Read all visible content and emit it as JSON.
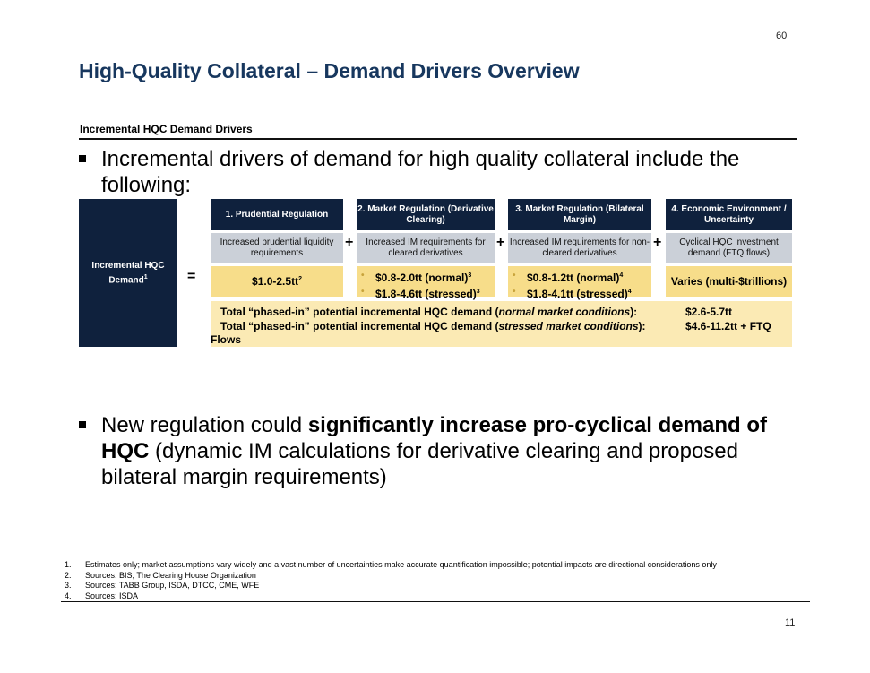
{
  "page_number_top": "60",
  "title": "High-Quality Collateral – Demand Drivers Overview",
  "section_label": "Incremental HQC Demand Drivers",
  "bullet1": "Incremental drivers of demand for high quality collateral include the following:",
  "left_box": {
    "label": "Incremental HQC Demand",
    "sup": "1"
  },
  "operators": {
    "equals": "=",
    "plus": "+"
  },
  "columns": [
    {
      "header": "1. Prudential Regulation",
      "description": "Increased prudential liquidity requirements",
      "value": "$1.0-2.5tt",
      "value_sup": "2"
    },
    {
      "header": "2. Market Regulation (Derivative Clearing)",
      "description": "Increased IM requirements for cleared derivatives",
      "values": [
        {
          "text": "$0.8-2.0tt (normal)",
          "sup": "3"
        },
        {
          "text": "$1.8-4.6tt (stressed)",
          "sup": "3"
        }
      ]
    },
    {
      "header": "3. Market Regulation (Bilateral Margin)",
      "description": "Increased IM requirements for non-cleared derivatives",
      "values": [
        {
          "text": "$0.8-1.2tt (normal)",
          "sup": "4"
        },
        {
          "text": "$1.8-4.1tt (stressed)",
          "sup": "4"
        }
      ]
    },
    {
      "header": "4. Economic Environment / Uncertainty",
      "description": "Cyclical HQC investment demand (FTQ flows)",
      "value": "Varies (multi-$trillions)"
    }
  ],
  "totals": {
    "line1_prefix": "Total “phased-in” potential incremental HQC demand (",
    "line1_italic": "normal market conditions",
    "line1_suffix": "):",
    "line1_value": "$2.6-5.7tt",
    "line2_prefix": "Total “phased-in” potential incremental HQC demand (",
    "line2_italic": "stressed market conditions",
    "line2_suffix": "):",
    "line2_value": "$4.6-11.2tt + FTQ",
    "line2_wrap": "Flows"
  },
  "bullet2": {
    "pre": "New regulation could ",
    "bold": "significantly increase pro-cyclical demand of HQC",
    "post": " (dynamic IM calculations for derivative clearing and proposed bilateral margin requirements)"
  },
  "footnotes": [
    {
      "n": "1.",
      "text": "Estimates only; market assumptions vary widely and a vast number of uncertainties make accurate quantification impossible; potential impacts are directional considerations only"
    },
    {
      "n": "2.",
      "text": "Sources: BIS, The Clearing House Organization"
    },
    {
      "n": "3.",
      "text": "Sources: TABB Group, ISDA, DTCC, CME, WFE"
    },
    {
      "n": "4.",
      "text": "Sources: ISDA"
    }
  ],
  "page_number_bottom": "11"
}
